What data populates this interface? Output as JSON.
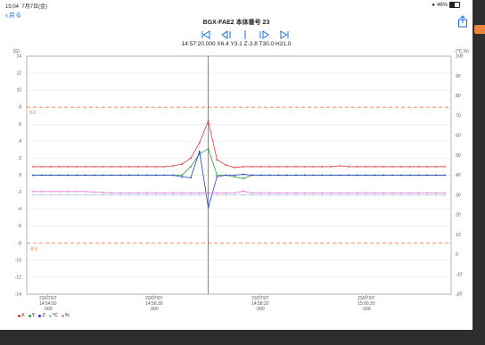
{
  "status_bar": {
    "time": "15:04",
    "date": "7月7日(金)",
    "wifi": "●",
    "battery": "46%"
  },
  "header": {
    "back_label": "戻る",
    "title": "BGX-FAE2 本体番号 23",
    "readout": "14:57:20.000 X6.4 Y3.1 Z-3.8 T30.0 H31.0"
  },
  "icons": {
    "back": "chevron-left-icon",
    "share": "share-icon",
    "first": "skip-to-first-icon",
    "prev": "step-back-icon",
    "cursor": "cursor-bar-icon",
    "next": "step-forward-icon",
    "last": "skip-to-last-icon"
  },
  "colors": {
    "accent": "#1e6fd9",
    "X": "#e0393e",
    "Y": "#2e9e3e",
    "Z": "#1f3ec7",
    "T": "#a9c5e3",
    "H": "#e57fd6",
    "threshold": "#f07a3a",
    "cursor": "#555555"
  },
  "chart_data": {
    "type": "line",
    "left_axis_unit": "(G)",
    "right_axis_unit": "(°C,%)",
    "y_left": {
      "min": -14,
      "max": 14,
      "ticks": [
        14,
        12,
        10,
        8,
        6,
        4,
        2,
        0,
        -2,
        -4,
        -6,
        -8,
        -10,
        -12,
        -14
      ]
    },
    "y_right": {
      "min": -20,
      "max": 100,
      "ticks": [
        100,
        90,
        80,
        70,
        60,
        50,
        40,
        30,
        20,
        10,
        0,
        -10,
        -20
      ]
    },
    "x_ticks": [
      {
        "date": "23/07/07",
        "time": "14:54:50",
        "ms": ".000"
      },
      {
        "date": "23/07/07",
        "time": "14:56:30",
        "ms": ".000"
      },
      {
        "date": "23/07/07",
        "time": "14:58:20",
        "ms": ".000"
      },
      {
        "date": "23/07/07",
        "time": "15:00:20",
        "ms": ".000"
      }
    ],
    "thresholds": [
      {
        "value": 8.0,
        "label": "8.0"
      },
      {
        "value": -8.0,
        "label": "-8.0"
      }
    ],
    "cursor_index": 20,
    "series": [
      {
        "name": "X",
        "values": [
          1,
          1,
          1,
          1,
          1,
          1,
          1,
          1,
          1,
          1,
          1,
          1,
          1,
          1,
          1,
          1,
          1.1,
          1.3,
          2,
          3.8,
          6.4,
          1.8,
          1.2,
          0.9,
          1,
          1,
          1,
          1,
          1,
          1,
          1,
          1,
          1,
          1,
          1,
          1.1,
          1,
          1,
          1,
          1,
          1,
          1,
          1,
          1,
          1,
          1,
          1,
          1
        ]
      },
      {
        "name": "Y",
        "values": [
          0,
          0,
          0,
          0,
          0,
          0,
          0,
          0,
          0,
          0,
          0,
          0,
          0,
          0,
          0,
          0,
          0,
          0,
          1,
          2.5,
          3.1,
          0,
          0,
          -0.2,
          -0.4,
          0,
          0,
          0,
          0,
          0,
          0,
          0,
          0,
          0,
          0,
          0,
          0,
          0,
          0,
          0,
          0,
          0,
          0,
          0,
          0,
          0,
          0,
          0
        ]
      },
      {
        "name": "Z",
        "values": [
          0,
          0,
          0,
          0,
          0,
          0,
          0,
          0,
          0,
          0,
          0,
          0,
          0,
          0,
          0,
          0,
          0,
          -0.2,
          -0.3,
          2.8,
          -3.8,
          -0.2,
          0,
          0,
          0.1,
          0,
          0,
          0,
          0,
          0,
          0,
          0,
          0,
          0,
          0,
          0,
          0,
          0,
          0,
          0,
          0,
          0,
          0,
          0,
          0,
          0,
          0,
          0
        ]
      },
      {
        "name": "°C",
        "values": [
          30,
          30,
          30,
          30,
          30,
          30,
          30,
          30,
          30,
          30,
          30,
          30,
          30,
          30,
          30,
          30,
          30,
          30,
          30,
          30,
          30,
          30,
          30,
          30,
          30,
          30,
          30,
          30,
          30,
          30,
          30,
          30,
          30,
          30,
          30,
          30,
          30,
          30,
          30,
          30,
          30,
          30,
          30,
          30,
          30,
          30,
          30,
          30
        ]
      },
      {
        "name": "%",
        "values": [
          31.8,
          31.8,
          31.8,
          31.8,
          31.8,
          31.8,
          31.8,
          31.5,
          31.2,
          31,
          31,
          31,
          31,
          31,
          31,
          31,
          31,
          31,
          31,
          31,
          31,
          31,
          31,
          31,
          32,
          31,
          31,
          31,
          31,
          31,
          31,
          31,
          31,
          31,
          31,
          31,
          31,
          31,
          31,
          31,
          31,
          31,
          31,
          31,
          31,
          31,
          31,
          31
        ]
      }
    ],
    "legend": [
      "X",
      "Y",
      "Z",
      "°C",
      "%"
    ],
    "legend_placement": "bottom-left",
    "grid": true
  }
}
